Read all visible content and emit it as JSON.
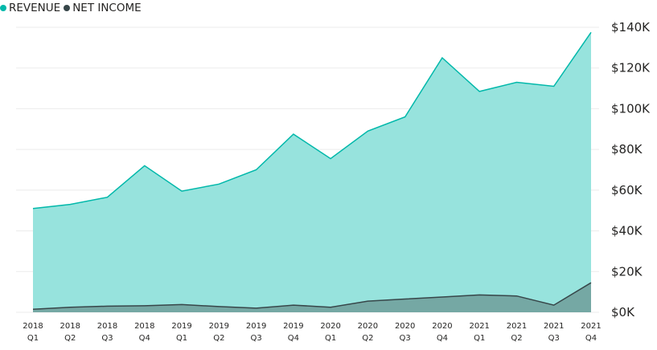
{
  "legend": {
    "revenue_label": "REVENUE",
    "net_income_label": "NET INCOME"
  },
  "chart_data": {
    "type": "area",
    "categories": [
      [
        "2018",
        "Q1"
      ],
      [
        "2018",
        "Q2"
      ],
      [
        "2018",
        "Q3"
      ],
      [
        "2018",
        "Q4"
      ],
      [
        "2019",
        "Q1"
      ],
      [
        "2019",
        "Q2"
      ],
      [
        "2019",
        "Q3"
      ],
      [
        "2019",
        "Q4"
      ],
      [
        "2020",
        "Q1"
      ],
      [
        "2020",
        "Q2"
      ],
      [
        "2020",
        "Q3"
      ],
      [
        "2020",
        "Q4"
      ],
      [
        "2021",
        "Q1"
      ],
      [
        "2021",
        "Q2"
      ],
      [
        "2021",
        "Q3"
      ],
      [
        "2021",
        "Q4"
      ]
    ],
    "series": [
      {
        "name": "REVENUE",
        "color": "#01B8AA",
        "fill": "#97E3DD",
        "values": [
          51000,
          53000,
          56500,
          72000,
          59500,
          63000,
          70000,
          87500,
          75500,
          89000,
          96000,
          125000,
          108500,
          113000,
          111000,
          137500
        ]
      },
      {
        "name": "NET INCOME",
        "color": "#374649",
        "fill": "#75A8A4",
        "values": [
          1500,
          2500,
          3000,
          3200,
          3800,
          2800,
          2000,
          3500,
          2500,
          5500,
          6500,
          7500,
          8500,
          8000,
          3500,
          14500
        ]
      }
    ],
    "y_ticks": [
      "$0K",
      "$20K",
      "$40K",
      "$60K",
      "$80K",
      "$100K",
      "$120K",
      "$140K"
    ],
    "ylim": [
      0,
      140000
    ],
    "grid": true,
    "legend_position": "top-left"
  }
}
